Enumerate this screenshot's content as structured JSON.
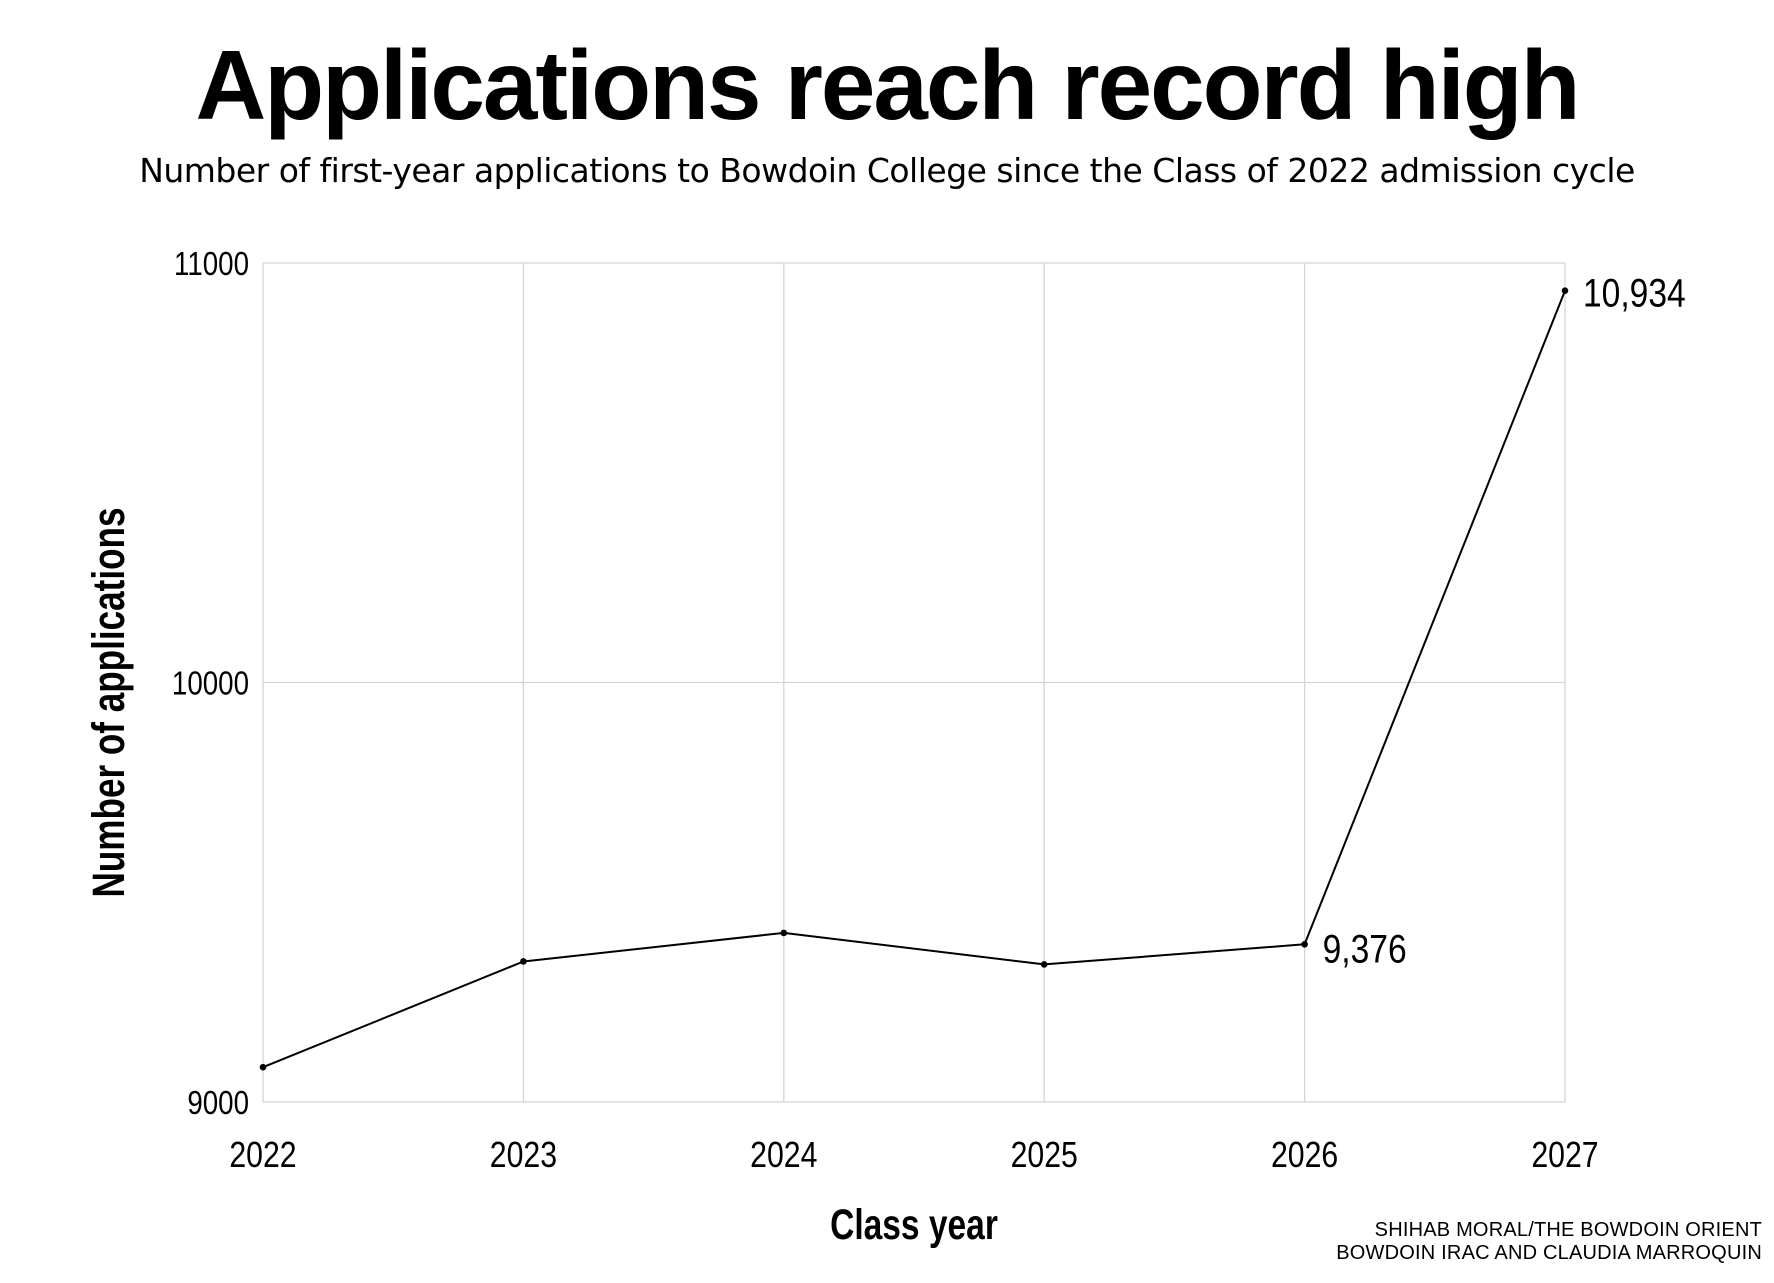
{
  "header": {
    "title": "Applications reach record high",
    "subtitle": "Number of first-year applications to Bowdoin College since the Class of 2022 admission cycle"
  },
  "credit": {
    "line1": "SHIHAB MORAL/THE BOWDOIN ORIENT",
    "line2": "BOWDOIN IRAC AND CLAUDIA MARROQUIN"
  },
  "chart_data": {
    "type": "line",
    "title": "Applications reach record high",
    "subtitle": "Number of first-year applications to Bowdoin College since the Class of 2022 admission cycle",
    "xlabel": "Class year",
    "ylabel": "Number of applications",
    "x": [
      2022,
      2023,
      2024,
      2025,
      2026,
      2027
    ],
    "x_tick_labels": [
      "2022",
      "2023",
      "2024",
      "2025",
      "2026",
      "2027"
    ],
    "series": [
      {
        "values": [
          9083,
          9335,
          9403,
          9328,
          9376,
          10934
        ]
      }
    ],
    "ylim": [
      9000,
      11000
    ],
    "y_ticks": [
      9000,
      10000,
      11000
    ],
    "y_tick_labels": [
      "9000",
      "10000",
      "11000"
    ],
    "annotations": [
      {
        "x": 2026,
        "y": 9376,
        "text": "9,376"
      },
      {
        "x": 2027,
        "y": 10934,
        "text": "10,934"
      }
    ],
    "grid": true,
    "line_color": "#000000",
    "grid_color": "#d4d4d4",
    "legend": "none"
  }
}
